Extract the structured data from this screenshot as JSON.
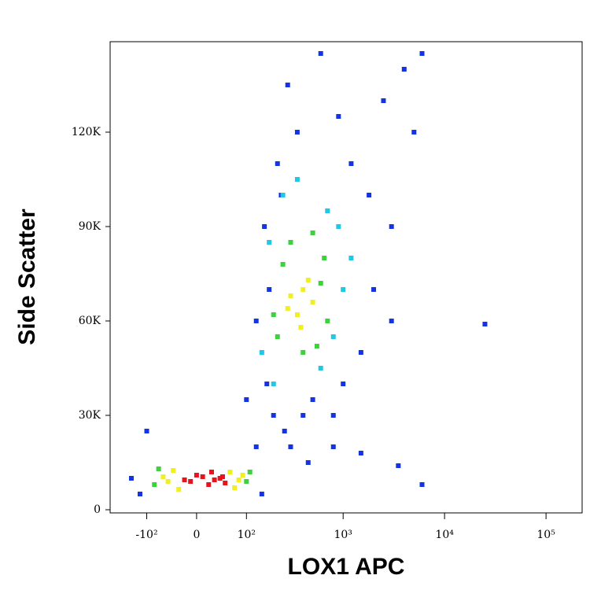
{
  "chart_data": {
    "type": "scatter",
    "xlabel": "LOX1 APC",
    "ylabel": "Side Scatter",
    "xscale": "biexponential",
    "xlim": [
      -251,
      226800
    ],
    "ylim": [
      -1000,
      148750
    ],
    "xticks": [
      {
        "value": -100,
        "label": "-10²"
      },
      0,
      {
        "value": 100,
        "label": "10²"
      },
      {
        "value": 1000,
        "label": "10³"
      },
      {
        "value": 10000,
        "label": "10⁴"
      },
      {
        "value": 100000,
        "label": "10⁵"
      }
    ],
    "yticks": [
      0,
      {
        "value": 30000,
        "label": "30K"
      },
      {
        "value": 60000,
        "label": "60K"
      },
      {
        "value": 90000,
        "label": "90K"
      },
      {
        "value": 120000,
        "label": "120K"
      }
    ],
    "series": [
      {
        "color": "#1432e6",
        "x": [
          -150,
          -120,
          150,
          200,
          130,
          170,
          260,
          300,
          400,
          500,
          800,
          1000,
          1500,
          2000,
          3000,
          5000,
          4000,
          6000,
          2500,
          1200,
          180,
          240,
          350,
          130,
          100,
          -100,
          220,
          280,
          900,
          1800,
          600,
          800,
          3000,
          160,
          450,
          1500,
          25000,
          3500,
          6000
        ],
        "values": [
          10000,
          5000,
          5000,
          30000,
          20000,
          40000,
          25000,
          20000,
          30000,
          35000,
          30000,
          40000,
          50000,
          70000,
          90000,
          120000,
          140000,
          145000,
          130000,
          110000,
          70000,
          100000,
          120000,
          60000,
          35000,
          25000,
          110000,
          135000,
          125000,
          100000,
          145000,
          20000,
          60000,
          90000,
          15000,
          18000,
          59000,
          14000,
          8000
        ]
      },
      {
        "color": "#1ec8e6",
        "x": [
          150,
          180,
          800,
          1000,
          900,
          200,
          700,
          250,
          1200,
          600,
          350
        ],
        "values": [
          50000,
          85000,
          55000,
          70000,
          90000,
          40000,
          95000,
          100000,
          80000,
          45000,
          105000
        ]
      },
      {
        "color": "#3cd23c",
        "x": [
          -80,
          100,
          -70,
          110,
          200,
          250,
          600,
          700,
          220,
          650,
          300,
          550,
          400,
          500
        ],
        "values": [
          8000,
          9000,
          13000,
          12000,
          62000,
          78000,
          72000,
          60000,
          55000,
          80000,
          85000,
          52000,
          50000,
          88000
        ]
      },
      {
        "color": "#f0f020",
        "x": [
          -50,
          -40,
          60,
          70,
          -30,
          80,
          -60,
          90,
          300,
          400,
          350,
          500,
          450,
          280,
          380
        ],
        "values": [
          9000,
          12500,
          12000,
          7000,
          6500,
          9500,
          10500,
          11000,
          68000,
          70000,
          62000,
          66000,
          73000,
          64000,
          58000
        ]
      },
      {
        "color": "#e8141b",
        "x": [
          -10,
          10,
          30,
          50,
          0,
          20,
          40,
          -20,
          25,
          45
        ],
        "values": [
          9000,
          10500,
          9500,
          8500,
          11000,
          8000,
          10000,
          9500,
          12000,
          10500
        ]
      }
    ]
  }
}
